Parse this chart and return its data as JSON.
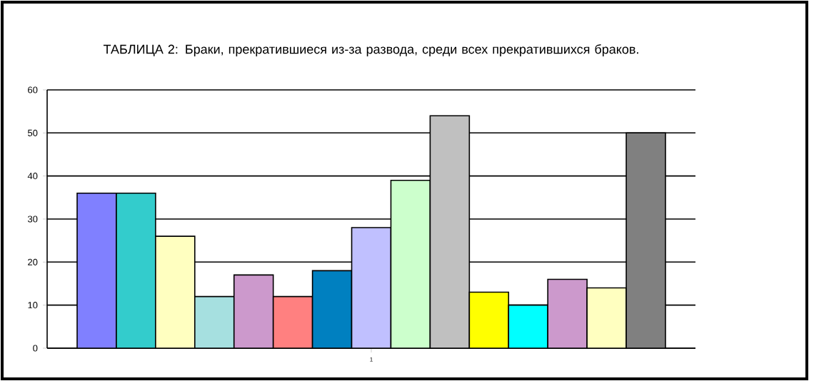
{
  "chart_data": {
    "type": "bar",
    "title": "ТАБЛИЦА 2: Браки, прекратившиеся из-за развода, среди всех прекратившихся браков.",
    "categories": [
      "1"
    ],
    "series": [
      {
        "color": "#8080ff",
        "values": [
          36
        ]
      },
      {
        "color": "#33cccc",
        "values": [
          36
        ]
      },
      {
        "color": "#ffffc0",
        "values": [
          26
        ]
      },
      {
        "color": "#a6e0e0",
        "values": [
          12
        ]
      },
      {
        "color": "#cc99cc",
        "values": [
          17
        ]
      },
      {
        "color": "#ff8080",
        "values": [
          12
        ]
      },
      {
        "color": "#0080c0",
        "values": [
          18
        ]
      },
      {
        "color": "#c0c0ff",
        "values": [
          28
        ]
      },
      {
        "color": "#ccffcc",
        "values": [
          39
        ]
      },
      {
        "color": "#c0c0c0",
        "values": [
          54
        ]
      },
      {
        "color": "#ffff00",
        "values": [
          13
        ]
      },
      {
        "color": "#00ffff",
        "values": [
          10
        ]
      },
      {
        "color": "#cc99cc",
        "values": [
          16
        ]
      },
      {
        "color": "#ffffc0",
        "values": [
          14
        ]
      },
      {
        "color": "#808080",
        "values": [
          50
        ]
      }
    ],
    "ylim": [
      0,
      60
    ],
    "yticks": [
      0,
      10,
      20,
      30,
      40,
      50,
      60
    ],
    "grid": "y"
  }
}
